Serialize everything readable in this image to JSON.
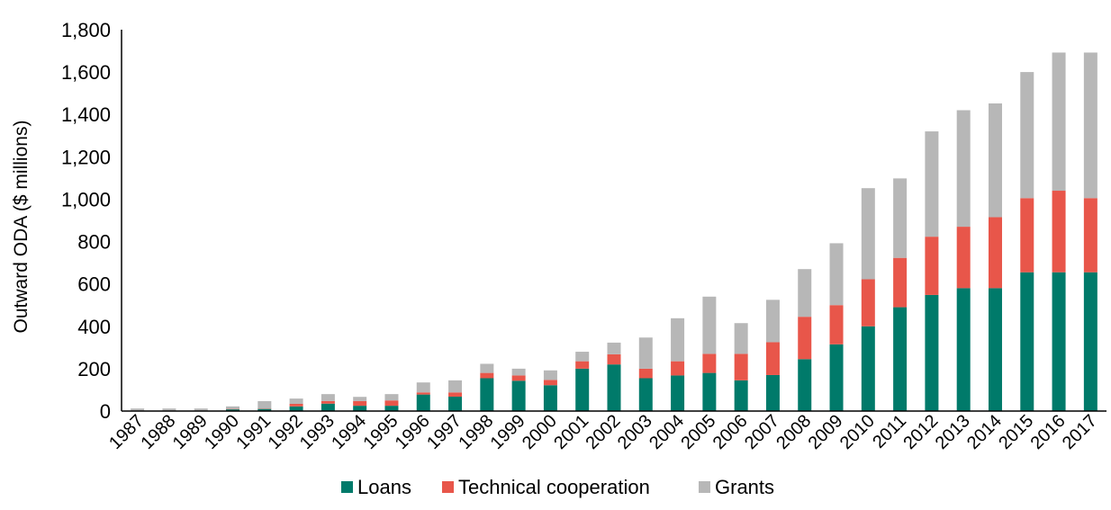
{
  "chart_data": {
    "type": "bar",
    "stacked": true,
    "title": "",
    "xlabel": "",
    "ylabel": "Outward ODA ($ millions)",
    "ylim": [
      0,
      1800
    ],
    "yticks": [
      0,
      200,
      400,
      600,
      800,
      1000,
      1200,
      1400,
      1600,
      1800
    ],
    "ytick_labels": [
      "0",
      "200",
      "400",
      "600",
      "800",
      "1,000",
      "1,200",
      "1,400",
      "1,600",
      "1,800"
    ],
    "grid": false,
    "legend_position": "bottom",
    "categories": [
      "1987",
      "1988",
      "1989",
      "1990",
      "1991",
      "1992",
      "1993",
      "1994",
      "1995",
      "1996",
      "1997",
      "1998",
      "1999",
      "2000",
      "2001",
      "2002",
      "2003",
      "2004",
      "2005",
      "2006",
      "2007",
      "2008",
      "2009",
      "2010",
      "2011",
      "2012",
      "2013",
      "2014",
      "2015",
      "2016",
      "2017"
    ],
    "series": [
      {
        "name": "Loans",
        "color": "#007a6a",
        "values": [
          0,
          0,
          0,
          8,
          10,
          22,
          35,
          25,
          25,
          78,
          68,
          155,
          143,
          122,
          200,
          220,
          155,
          168,
          180,
          145,
          170,
          245,
          315,
          400,
          490,
          548,
          580,
          580,
          655,
          655,
          655
        ]
      },
      {
        "name": "Technical cooperation",
        "color": "#e8564a",
        "values": [
          0,
          0,
          0,
          2,
          2,
          12,
          12,
          22,
          25,
          10,
          20,
          25,
          25,
          25,
          35,
          48,
          45,
          67,
          90,
          125,
          155,
          200,
          185,
          222,
          233,
          275,
          290,
          335,
          350,
          385,
          350
        ]
      },
      {
        "name": "Grants",
        "color": "#b7b7b7",
        "values": [
          12,
          12,
          12,
          12,
          35,
          25,
          33,
          20,
          30,
          47,
          57,
          43,
          32,
          45,
          45,
          55,
          147,
          203,
          270,
          145,
          200,
          225,
          292,
          430,
          375,
          497,
          550,
          537,
          595,
          652,
          687
        ]
      }
    ]
  }
}
